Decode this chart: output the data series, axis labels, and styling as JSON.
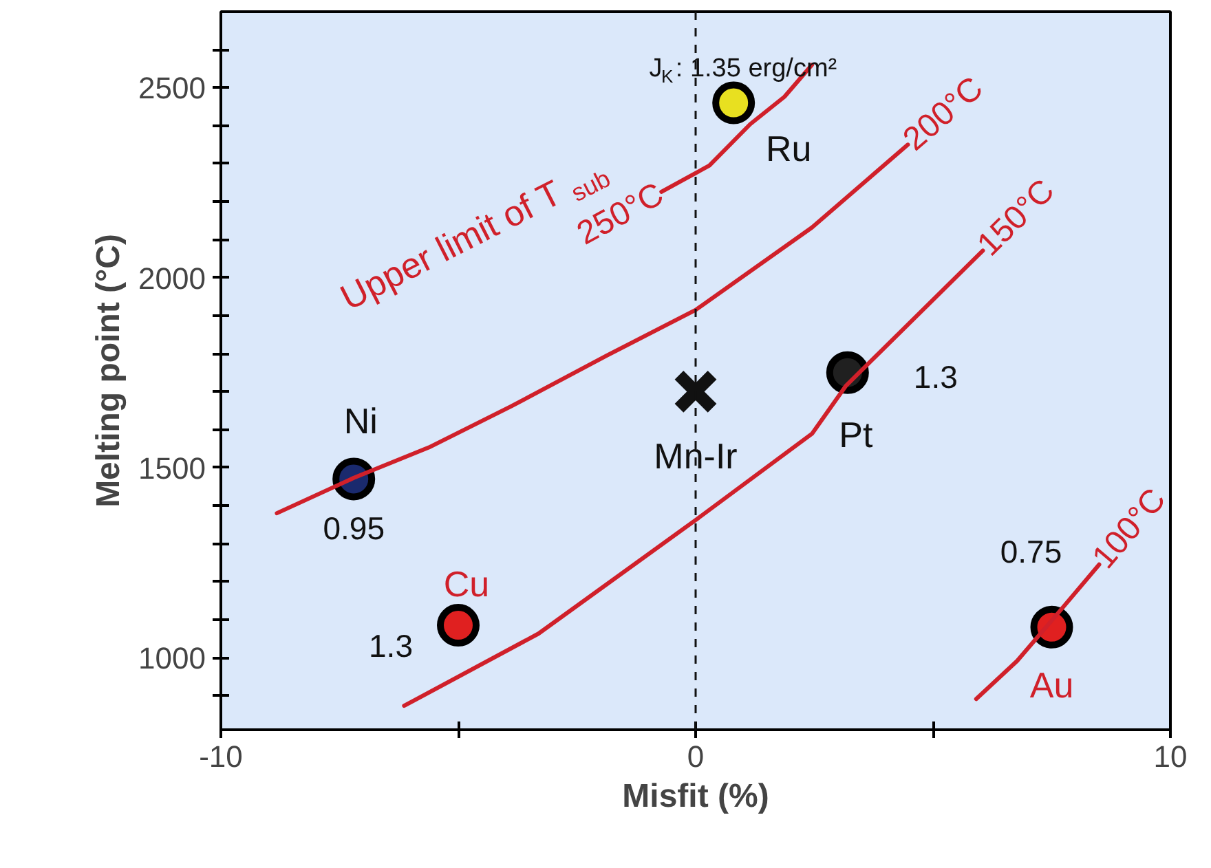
{
  "chart_data": {
    "type": "scatter",
    "xlabel": "Misfit (%)",
    "ylabel": "Melting point (°C)",
    "xlim": [
      -10,
      10
    ],
    "ylim": [
      810,
      2700
    ],
    "xticks": [
      -10,
      {
        "value": -5,
        "label": null
      },
      0,
      {
        "value": 5,
        "label": null
      },
      10
    ],
    "yticks": [
      {
        "value": 900,
        "label": null
      },
      1000,
      {
        "value": 1100,
        "label": null
      },
      {
        "value": 1200,
        "label": null
      },
      {
        "value": 1300,
        "label": null
      },
      {
        "value": 1400,
        "label": null
      },
      1500,
      {
        "value": 1600,
        "label": null
      },
      {
        "value": 1700,
        "label": null
      },
      {
        "value": 1800,
        "label": null
      },
      {
        "value": 1900,
        "label": null
      },
      2000,
      {
        "value": 2100,
        "label": null
      },
      {
        "value": 2200,
        "label": null
      },
      {
        "value": 2300,
        "label": null
      },
      {
        "value": 2400,
        "label": null
      },
      2500,
      {
        "value": 2600,
        "label": null
      }
    ],
    "grid": false,
    "series": [
      {
        "marker": "circle",
        "x": [
          -7.2,
          -5.0,
          3.2,
          0.8,
          7.5
        ],
        "values": [
          1470,
          1085,
          1750,
          2460,
          1080
        ],
        "colors": [
          "#1a2a6e",
          "#e02020",
          "#202020",
          "#e8e020",
          "#e02020"
        ]
      },
      {
        "marker": "cross",
        "color": "#111111",
        "x": [
          0
        ],
        "values": [
          1700
        ]
      },
      {
        "type": "line",
        "name": "250°C",
        "color": "#d0202a",
        "x": [
          2.45,
          1.87,
          1.15,
          0.29,
          -0.72
        ],
        "values": [
          2560,
          2476,
          2404,
          2295,
          2226
        ]
      },
      {
        "type": "line",
        "name": "200°C",
        "color": "#d0202a",
        "x": [
          -8.82,
          -7.2,
          -5.62,
          -3.89,
          -1.87,
          0,
          2.45,
          4.47
        ],
        "values": [
          1380,
          1473,
          1553,
          1661,
          1795,
          1915,
          2132,
          2350
        ]
      },
      {
        "type": "line",
        "name": "150°C",
        "color": "#d0202a",
        "x": [
          -6.14,
          -3.31,
          0,
          2.45,
          3.17,
          6.05
        ],
        "values": [
          873,
          1063,
          1362,
          1589,
          1716,
          2071
        ]
      },
      {
        "type": "line",
        "name": "100°C",
        "color": "#d0202a",
        "x": [
          5.91,
          6.77,
          7.64,
          8.5
        ],
        "values": [
          891,
          991,
          1118,
          1245
        ]
      }
    ],
    "ref_lines": [
      {
        "axis": "x",
        "value": 0,
        "color": "#111111",
        "line_style": "dashed"
      }
    ],
    "annotations": [
      {
        "text": "Ni",
        "x": -7.2,
        "y": 1470
      },
      {
        "text": "Cu",
        "x": -5.0,
        "y": 1085
      },
      {
        "text": "Pt",
        "x": 3.2,
        "y": 1750
      },
      {
        "text": "Ru",
        "x": 0.8,
        "y": 2460
      },
      {
        "text": "Au",
        "x": 7.5,
        "y": 1080
      },
      {
        "text": "Mn-Ir",
        "x": 0,
        "y": 1700
      },
      {
        "text": "0.95",
        "x": -7.2,
        "y": 1470
      },
      {
        "text": "1.3",
        "x": -5.0,
        "y": 1085
      },
      {
        "text": "1.3",
        "x": 3.2,
        "y": 1750
      },
      {
        "text": "J$_{K}$: 1.35 erg/cm²",
        "x": 0.8,
        "y": 2460
      },
      {
        "text": "0.75",
        "x": 7.5,
        "y": 1080
      },
      "Upper limit of T$_{sub}$"
    ]
  }
}
